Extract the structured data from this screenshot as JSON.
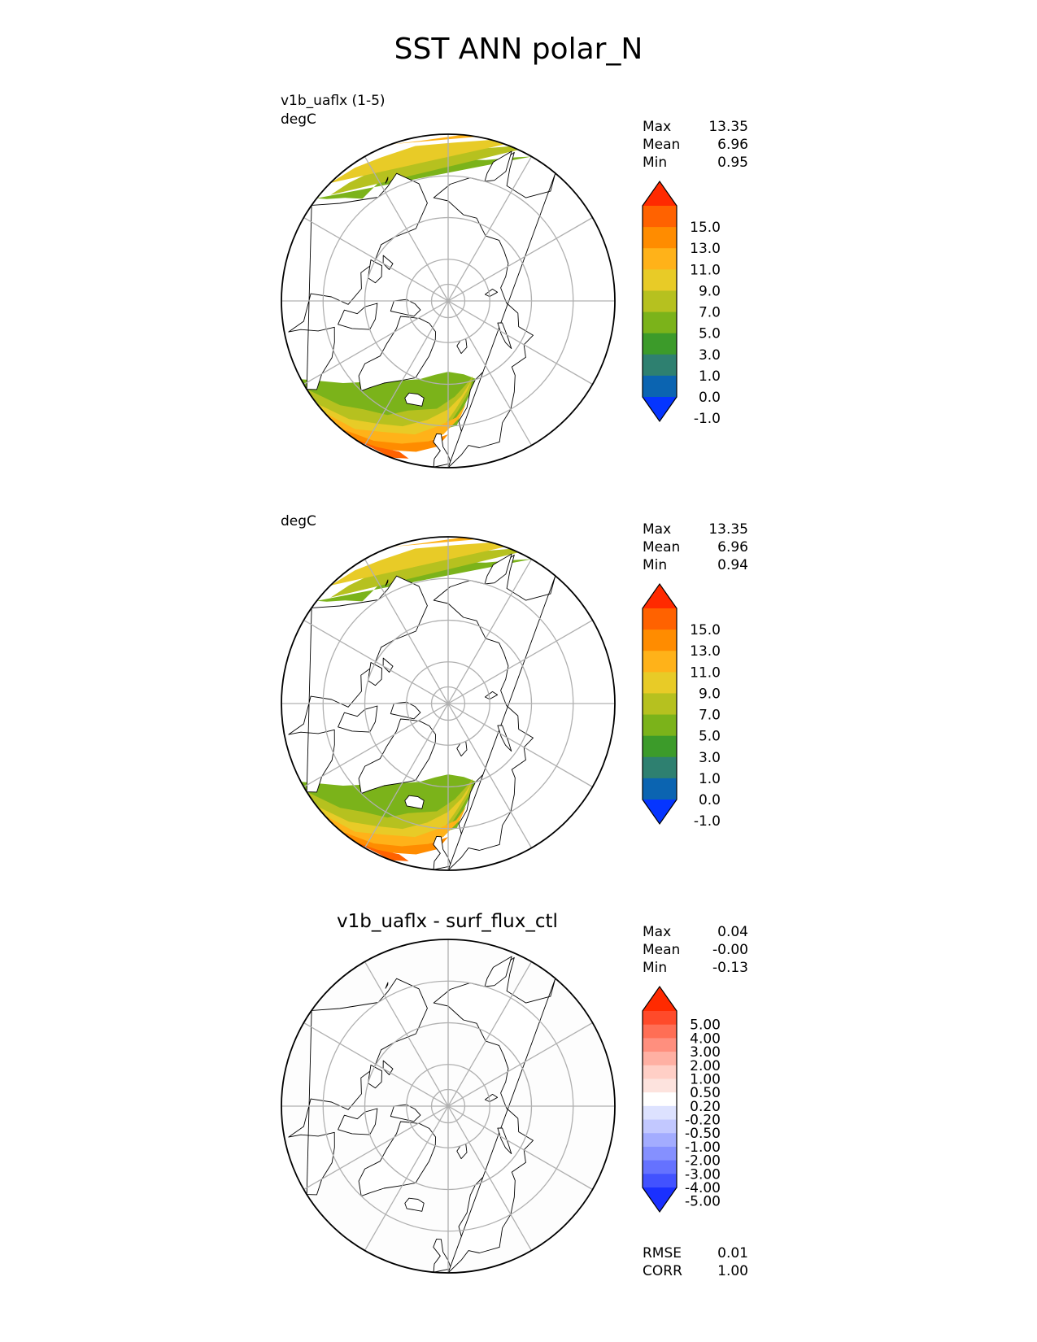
{
  "title": "SST ANN polar_N",
  "colors": {
    "graticule": "#b0b0b0",
    "coast": "#000000",
    "land": "#ffffff",
    "ocean_nodata": "#ffffff"
  },
  "chart_data": [
    {
      "type": "polar-stereographic contour map",
      "panel": "test",
      "subtitle": "v1b_uaflx (1-5)",
      "units": "degC",
      "stats": {
        "Max": "13.35",
        "Mean": "6.96",
        "Min": "0.95"
      },
      "colorbar": {
        "extend": "both",
        "tick_labels": [
          "15.0",
          "13.0",
          "11.0",
          "9.0",
          "7.0",
          "5.0",
          "3.0",
          "1.0",
          "0.0",
          "-1.0"
        ],
        "colors_top_to_bottom": [
          "#ff2a00",
          "#ff6200",
          "#ff8c00",
          "#ffb219",
          "#e8cb27",
          "#b6c11f",
          "#7bb31a",
          "#3c9b2a",
          "#2e8070",
          "#0b64b1",
          "#0535ff"
        ]
      }
    },
    {
      "type": "polar-stereographic contour map",
      "panel": "reference",
      "subtitle": "",
      "units": "degC",
      "stats": {
        "Max": "13.35",
        "Mean": "6.96",
        "Min": "0.94"
      },
      "colorbar": {
        "extend": "both",
        "tick_labels": [
          "15.0",
          "13.0",
          "11.0",
          "9.0",
          "7.0",
          "5.0",
          "3.0",
          "1.0",
          "0.0",
          "-1.0"
        ],
        "colors_top_to_bottom": [
          "#ff2a00",
          "#ff6200",
          "#ff8c00",
          "#ffb219",
          "#e8cb27",
          "#b6c11f",
          "#7bb31a",
          "#3c9b2a",
          "#2e8070",
          "#0b64b1",
          "#0535ff"
        ]
      }
    },
    {
      "type": "polar-stereographic contour map",
      "panel": "difference",
      "subtitle": "v1b_uaflx - surf_flux_ctl",
      "units": "",
      "stats": {
        "Max": "0.04",
        "Mean": "-0.00",
        "Min": "-0.13"
      },
      "metrics": {
        "RMSE": "0.01",
        "CORR": "1.00"
      },
      "colorbar": {
        "extend": "both",
        "tick_labels": [
          "5.00",
          "4.00",
          "3.00",
          "2.00",
          "1.00",
          "0.50",
          "0.20",
          "-0.20",
          "-0.50",
          "-1.00",
          "-2.00",
          "-3.00",
          "-4.00",
          "-5.00"
        ],
        "colors_top_to_bottom": [
          "#ff2a00",
          "#ff4a2a",
          "#ff6e55",
          "#ff8f7e",
          "#ffb0a3",
          "#ffcfc6",
          "#fde3de",
          "#ffffff",
          "#dde2ff",
          "#c2c8ff",
          "#a3acff",
          "#8590ff",
          "#6572ff",
          "#4252ff",
          "#1a30ff"
        ]
      }
    }
  ]
}
